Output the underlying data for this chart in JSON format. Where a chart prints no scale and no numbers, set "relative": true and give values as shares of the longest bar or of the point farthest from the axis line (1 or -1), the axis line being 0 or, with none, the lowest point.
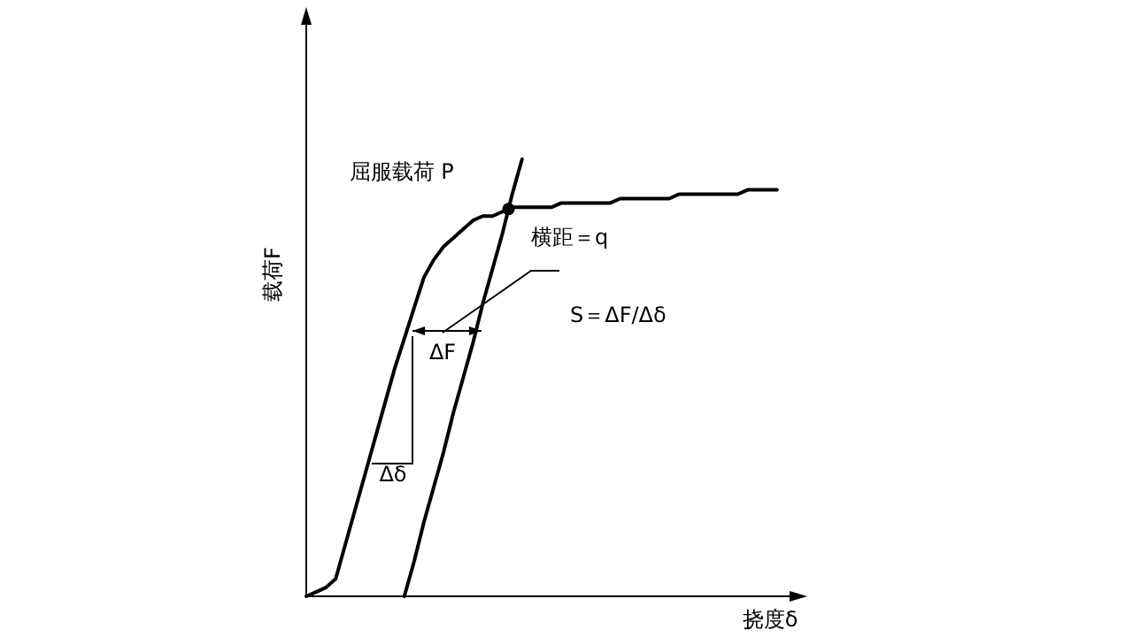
{
  "chart_data": {
    "type": "line",
    "relative": true,
    "xlabel": "挠度δ",
    "ylabel": "载荷F",
    "categories": [
      null,
      null,
      null,
      null,
      null,
      null,
      null,
      null,
      null,
      null,
      null,
      null,
      null,
      null,
      null,
      null,
      null,
      null,
      null,
      null,
      null,
      null,
      null,
      null,
      null,
      null,
      null,
      null,
      null,
      null,
      null,
      null,
      null,
      null,
      null,
      null,
      null,
      null,
      null,
      null,
      null,
      null,
      null,
      null,
      null,
      null,
      null,
      null,
      null,
      null
    ],
    "series": [
      {
        "color": "#000000",
        "values": [
          0,
          0.01,
          0.02,
          0.04,
          0.12,
          0.2,
          0.28,
          0.36,
          0.44,
          0.52,
          0.59,
          0.66,
          0.73,
          0.77,
          0.8,
          0.82,
          0.84,
          0.86,
          0.87,
          0.87,
          0.88,
          0.89,
          0.89,
          0.89,
          0.89,
          0.89,
          0.9,
          0.9,
          0.9,
          0.9,
          0.9,
          0.9,
          0.91,
          0.91,
          0.91,
          0.91,
          0.91,
          0.91,
          0.92,
          0.92,
          0.92,
          0.92,
          0.92,
          0.92,
          0.92,
          0.93,
          0.93,
          0.93,
          0.93,
          null
        ]
      },
      {
        "color": "#000000",
        "values": [
          null,
          null,
          null,
          null,
          null,
          null,
          null,
          null,
          null,
          null,
          0,
          0.08,
          0.17,
          0.25,
          0.33,
          0.42,
          0.5,
          0.58,
          0.67,
          0.75,
          0.83,
          0.92,
          1,
          null,
          null,
          null,
          null,
          null,
          null,
          null,
          null,
          null,
          null,
          null,
          null,
          null,
          null,
          null,
          null,
          null,
          null,
          null,
          null,
          null,
          null,
          null,
          null,
          null,
          null,
          null
        ]
      }
    ],
    "annotations": [
      "屈服载荷 P",
      "横距＝q",
      "S＝ΔF/Δδ",
      "ΔF",
      "Δδ"
    ]
  }
}
